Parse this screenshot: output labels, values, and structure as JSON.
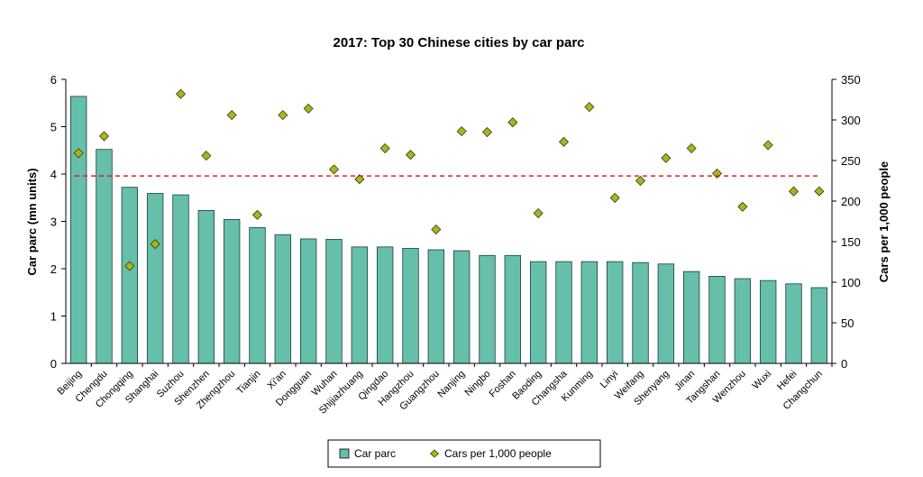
{
  "chart_data": {
    "type": "bar",
    "title": "2017:  Top 30  Chinese cities by car parc",
    "categories": [
      "Beijing",
      "Chengdu",
      "Chongqing",
      "Shanghai",
      "Suzhou",
      "Shenzhen",
      "Zhengzhou",
      "Tianjin",
      "Xi'an",
      "Dongguan",
      "Wuhan",
      "Shijiazhuang",
      "Qingdao",
      "Hangzhou",
      "Guangzhou",
      "Nanjing",
      "Ningbo",
      "Foshan",
      "Baoding",
      "Changsha",
      "Kunming",
      "Linyi",
      "Weifang",
      "Shenyang",
      "Jinan",
      "Tangshan",
      "Wenzhou",
      "Wuxi",
      "Hefei",
      "Changchun"
    ],
    "ylabel": "Car parc (mn units)",
    "y2label": "Cars per 1,000 people",
    "ylim": [
      0,
      6
    ],
    "y2lim": [
      0,
      350
    ],
    "yticks": [
      "0",
      "1",
      "2",
      "3",
      "4",
      "5",
      "6"
    ],
    "y2ticks": [
      "0",
      "50",
      "100",
      "150",
      "200",
      "250",
      "300",
      "350"
    ],
    "series": [
      {
        "name": "Car parc",
        "type": "bar",
        "axis": "left",
        "color": "#66bfaa",
        "values": [
          5.64,
          4.52,
          3.72,
          3.59,
          3.56,
          3.23,
          3.04,
          2.87,
          2.72,
          2.63,
          2.62,
          2.46,
          2.46,
          2.43,
          2.4,
          2.38,
          2.28,
          2.28,
          2.15,
          2.15,
          2.15,
          2.15,
          2.13,
          2.1,
          1.94,
          1.84,
          1.79,
          1.75,
          1.68,
          1.6
        ]
      },
      {
        "name": "Cars per 1,000 people",
        "type": "scatter",
        "axis": "right",
        "color": "#a7b520",
        "values": [
          259,
          280,
          120,
          147,
          332,
          256,
          306,
          183,
          306,
          314,
          239,
          227,
          265,
          257,
          165,
          286,
          285,
          297,
          185,
          273,
          316,
          204,
          225,
          253,
          265,
          234,
          193,
          269,
          212,
          212
        ]
      }
    ],
    "reference_line": {
      "value": 231,
      "axis": "right",
      "color": "#e02020",
      "style": "dashed"
    },
    "legend": {
      "position": "bottom-center",
      "entries": [
        "Car parc",
        "Cars per 1,000 people"
      ]
    },
    "grid": false
  }
}
